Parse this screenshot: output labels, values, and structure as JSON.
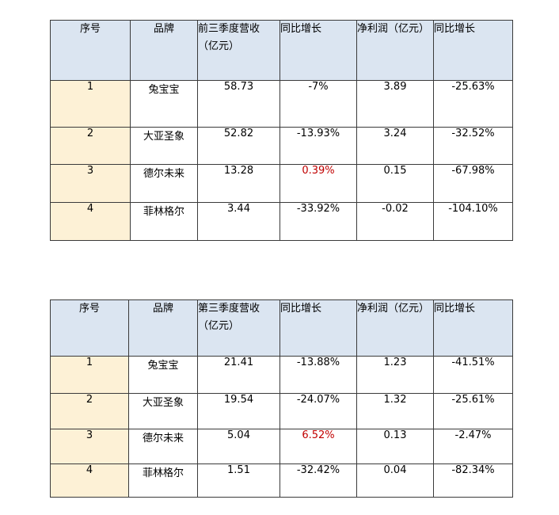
{
  "table1": {
    "headers": [
      "序号",
      "品牌",
      "前三季度营收（亿元）",
      "同比增长",
      "净利润（亿元）",
      "同比增长"
    ],
    "rows": [
      {
        "idx": "1",
        "brand": "兔宝宝",
        "revenue": "58.73",
        "rev_growth": "-7%",
        "profit": "3.89",
        "profit_growth": "-25.63%"
      },
      {
        "idx": "2",
        "brand": "大亚圣象",
        "revenue": "52.82",
        "rev_growth": "-13.93%",
        "profit": "3.24",
        "profit_growth": "-32.52%"
      },
      {
        "idx": "3",
        "brand": "德尔未来",
        "revenue": "13.28",
        "rev_growth": "0.39%",
        "profit": "0.15",
        "profit_growth": "-67.98%"
      },
      {
        "idx": "4",
        "brand": "菲林格尔",
        "revenue": "3.44",
        "rev_growth": "-33.92%",
        "profit": "-0.02",
        "profit_growth": "-104.10%"
      }
    ]
  },
  "table2": {
    "headers": [
      "序号",
      "品牌",
      "第三季度营收（亿元）",
      "同比增长",
      "净利润（亿元）",
      "同比增长"
    ],
    "rows": [
      {
        "idx": "1",
        "brand": "兔宝宝",
        "revenue": "21.41",
        "rev_growth": "-13.88%",
        "profit": "1.23",
        "profit_growth": "-41.51%"
      },
      {
        "idx": "2",
        "brand": "大亚圣象",
        "revenue": "19.54",
        "rev_growth": "-24.07%",
        "profit": "1.32",
        "profit_growth": "-25.61%"
      },
      {
        "idx": "3",
        "brand": "德尔未来",
        "revenue": "5.04",
        "rev_growth": "6.52%",
        "profit": "0.13",
        "profit_growth": "-2.47%"
      },
      {
        "idx": "4",
        "brand": "菲林格尔",
        "revenue": "1.51",
        "rev_growth": "-32.42%",
        "profit": "0.04",
        "profit_growth": "-82.34%"
      }
    ]
  },
  "colors": {
    "header_bg": "#dbe5f1",
    "index_bg": "#fdf1d6",
    "highlight_red": "#c00000"
  }
}
